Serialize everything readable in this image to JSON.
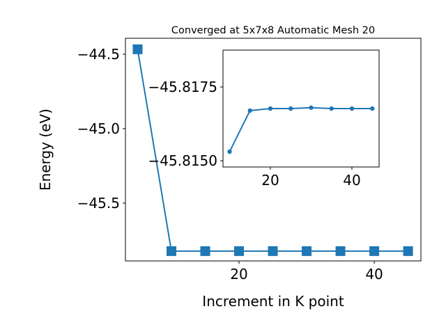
{
  "chart_data": [
    {
      "type": "line",
      "title": "Converged at 5x7x8 Automatic Mesh 20",
      "x_label": "Increment in K point",
      "y_label": "Energy (eV)",
      "x": [
        5,
        10,
        15,
        20,
        25,
        30,
        35,
        40,
        45
      ],
      "series": [
        {
          "color": "#1f77b4",
          "marker": "square",
          "values": [
            -44.467,
            -45.822,
            -45.822,
            -45.822,
            -45.822,
            -45.822,
            -45.822,
            -45.822,
            -45.822
          ]
        }
      ],
      "xlim": [
        3.2,
        46.9
      ],
      "xticks": [
        20,
        40
      ],
      "ylim": [
        -45.888,
        -44.393
      ],
      "yticks": [
        {
          "value": -45.5,
          "label": "−45.5"
        },
        {
          "value": -45.0,
          "label": "−45.0"
        },
        {
          "value": -44.5,
          "label": "−44.5"
        }
      ]
    },
    {
      "type": "line",
      "x": [
        10,
        15,
        20,
        25,
        30,
        35,
        40,
        45
      ],
      "series": [
        {
          "color": "#1f77b4",
          "marker": "circle",
          "values": [
            -45.81531,
            -45.8167,
            -45.81677,
            -45.81677,
            -45.8168,
            -45.81677,
            -45.81677,
            -45.81677
          ]
        }
      ],
      "xlim": [
        8.38,
        46.67
      ],
      "xticks": [
        20,
        40
      ],
      "ylim": [
        -45.81479,
        -45.81875
      ],
      "yticks": [
        {
          "value": -45.815,
          "label": "−45.8150"
        },
        {
          "value": -45.8175,
          "label": "−45.8175"
        }
      ]
    }
  ]
}
